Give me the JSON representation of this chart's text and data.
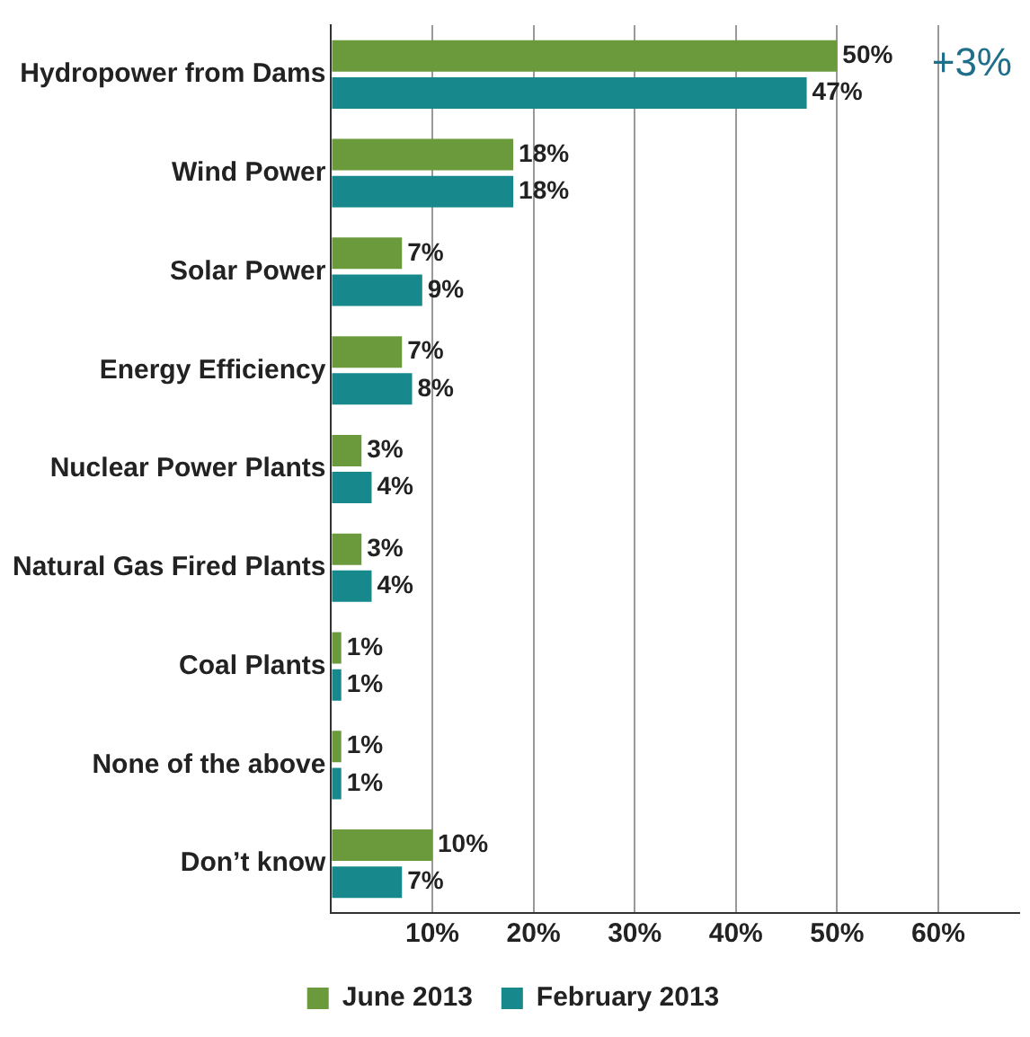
{
  "chart_data": {
    "type": "bar",
    "orientation": "horizontal",
    "categories": [
      "Hydropower from Dams",
      "Wind Power",
      "Solar Power",
      "Energy Efficiency",
      "Nuclear Power Plants",
      "Natural Gas Fired Plants",
      "Coal Plants",
      "None of the above",
      "Don’t know"
    ],
    "series": [
      {
        "name": "June 2013",
        "color": "#6b9a3c",
        "values": [
          50,
          18,
          7,
          7,
          3,
          3,
          1,
          1,
          10
        ],
        "value_labels": [
          "50%",
          "18%",
          "7%",
          "7%",
          "3%",
          "3%",
          "1%",
          "1%",
          "10%"
        ]
      },
      {
        "name": "February 2013",
        "color": "#17898c",
        "values": [
          47,
          18,
          9,
          8,
          4,
          4,
          1,
          1,
          7
        ],
        "value_labels": [
          "47%",
          "18%",
          "9%",
          "8%",
          "4%",
          "4%",
          "1%",
          "1%",
          "7%"
        ]
      }
    ],
    "xlim": [
      0,
      68
    ],
    "xticks": [
      {
        "value": 0,
        "label": null
      },
      {
        "value": 10,
        "label": "10%"
      },
      {
        "value": 20,
        "label": "20%"
      },
      {
        "value": 30,
        "label": "30%"
      },
      {
        "value": 40,
        "label": "40%"
      },
      {
        "value": 50,
        "label": "50%"
      },
      {
        "value": 60,
        "label": "60%"
      }
    ],
    "grid": "x",
    "legend": "bottom",
    "annotations": [
      "+3%"
    ]
  }
}
